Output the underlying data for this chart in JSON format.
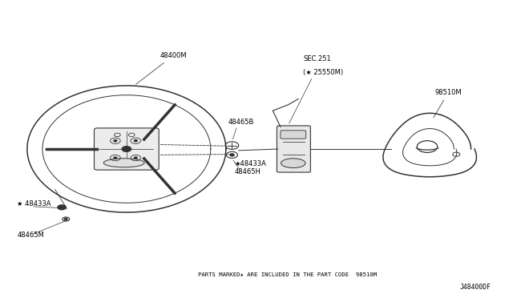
{
  "bg_color": "#ffffff",
  "border_color": "#cccccc",
  "line_color": "#333333",
  "label_color": "#000000",
  "fig_width": 6.4,
  "fig_height": 3.72,
  "footer_text": "PARTS MARKED★ ARE INCLUDED IN THE PART CODE  98510M",
  "footer_code": "J48400DF",
  "star": "★",
  "label_48400M": "48400M",
  "label_48465B": "48465B",
  "label_48433A": "48433A",
  "label_48465H": "48465H",
  "label_48465M": "48465M",
  "label_sec251": "SEC.251",
  "label_25550M": "25550M",
  "label_98510M": "98510M"
}
